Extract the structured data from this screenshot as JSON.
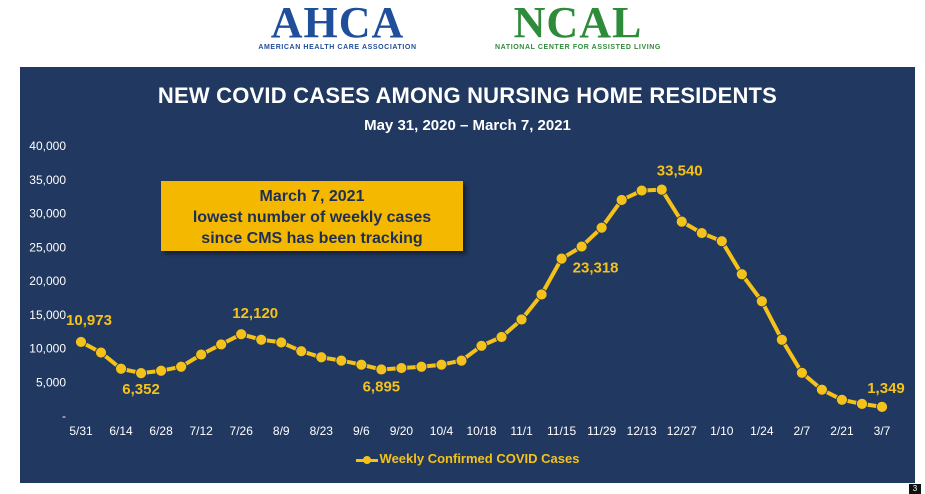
{
  "logos": {
    "left": {
      "name": "AHCA",
      "sub": "AMERICAN HEALTH CARE ASSOCIATION",
      "color": "#1f4e9a"
    },
    "right": {
      "name": "NCAL",
      "sub": "NATIONAL CENTER FOR ASSISTED LIVING",
      "color": "#2e8b3a"
    }
  },
  "callout": {
    "line1": "March 7, 2021",
    "line2": "lowest number of weekly cases",
    "line3": "since CMS has been tracking"
  },
  "footer": {
    "page": "3"
  },
  "colors": {
    "panel": "#213860",
    "line": "#f5c21a",
    "callout": "#f5b800",
    "text": "#ffffff"
  },
  "chart_data": {
    "type": "line",
    "title": "NEW COVID CASES AMONG NURSING HOME RESIDENTS",
    "subtitle": "May 31, 2020 – March 7, 2021",
    "xlabel": "",
    "ylabel": "",
    "ylim": [
      0,
      40000
    ],
    "yticks": [
      "-",
      "5,000",
      "10,000",
      "15,000",
      "20,000",
      "25,000",
      "30,000",
      "35,000",
      "40,000"
    ],
    "ytick_values": [
      0,
      5000,
      10000,
      15000,
      20000,
      25000,
      30000,
      35000,
      40000
    ],
    "grid": false,
    "legend_position": "bottom",
    "x": [
      "5/31",
      "6/7",
      "6/14",
      "6/21",
      "6/28",
      "7/5",
      "7/12",
      "7/19",
      "7/26",
      "8/2",
      "8/9",
      "8/16",
      "8/23",
      "8/30",
      "9/6",
      "9/13",
      "9/20",
      "9/27",
      "10/4",
      "10/11",
      "10/18",
      "10/25",
      "11/1",
      "11/8",
      "11/15",
      "11/22",
      "11/29",
      "12/6",
      "12/13",
      "12/20",
      "12/27",
      "1/3",
      "1/10",
      "1/17",
      "1/24",
      "1/31",
      "2/7",
      "2/14",
      "2/21",
      "2/28",
      "3/7"
    ],
    "xtick_labels": [
      "5/31",
      "6/14",
      "6/28",
      "7/12",
      "7/26",
      "8/9",
      "8/23",
      "9/6",
      "9/20",
      "10/4",
      "10/18",
      "11/1",
      "11/15",
      "11/29",
      "12/13",
      "12/27",
      "1/10",
      "1/24",
      "2/7",
      "2/21",
      "3/7"
    ],
    "series": [
      {
        "name": "Weekly Confirmed COVID Cases",
        "values": [
          10973,
          9400,
          7000,
          6352,
          6700,
          7300,
          9100,
          10600,
          12120,
          11300,
          10900,
          9600,
          8700,
          8200,
          7600,
          6895,
          7100,
          7300,
          7600,
          8200,
          10400,
          11700,
          14300,
          18000,
          23318,
          25100,
          27900,
          32000,
          33400,
          33540,
          28800,
          27100,
          25900,
          21000,
          17000,
          11300,
          6400,
          3900,
          2400,
          1800,
          1349
        ]
      }
    ],
    "annotations": [
      {
        "label": "10,973",
        "index": 0
      },
      {
        "label": "6,352",
        "index": 3
      },
      {
        "label": "12,120",
        "index": 8
      },
      {
        "label": "6,895",
        "index": 15
      },
      {
        "label": "23,318",
        "index": 24
      },
      {
        "label": "33,540",
        "index": 29
      },
      {
        "label": "1,349",
        "index": 40
      }
    ]
  }
}
